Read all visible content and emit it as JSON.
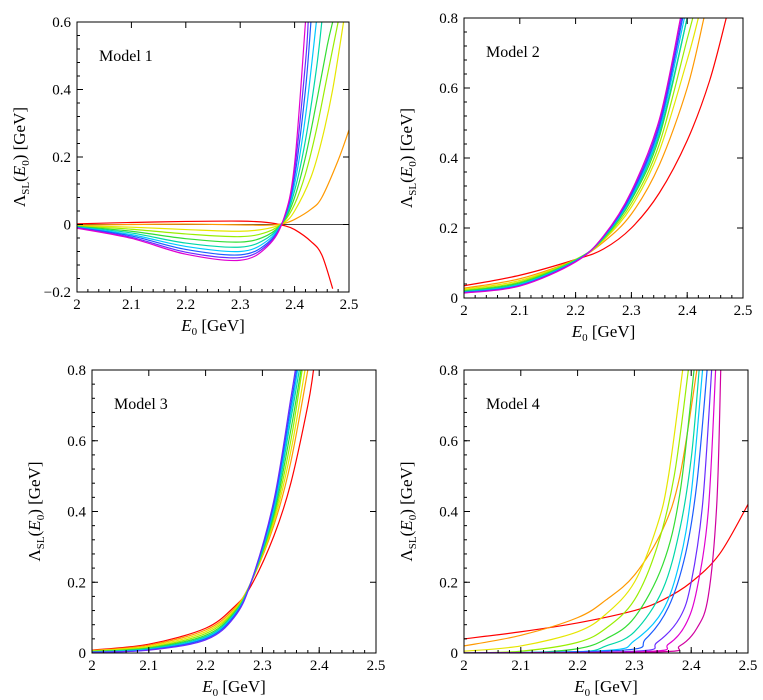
{
  "chart_data": [
    {
      "type": "line",
      "title": "Model 1",
      "xlabel": "E_0 [GeV]",
      "ylabel": "Λ_SL(E_0) [GeV]",
      "xlim": [
        2,
        2.5
      ],
      "ylim": [
        -0.2,
        0.6
      ],
      "xticks": [
        2,
        2.1,
        2.2,
        2.3,
        2.4,
        2.5
      ],
      "xtick_labels": [
        "2",
        "2.1",
        "2.2",
        "2.3",
        "2.4",
        "2.5"
      ],
      "yticks": [
        -0.2,
        0,
        0.2,
        0.4,
        0.6
      ],
      "ytick_labels": [
        "−0.2",
        "0",
        "0.2",
        "0.4",
        "0.6"
      ],
      "zero_line": true,
      "series": [
        {
          "name": "c1",
          "color": "#ff0000",
          "x": [
            2.0,
            2.1,
            2.2,
            2.3,
            2.35,
            2.38,
            2.4,
            2.43,
            2.45,
            2.47
          ],
          "y": [
            0.002,
            0.006,
            0.009,
            0.01,
            0.006,
            -0.003,
            -0.015,
            -0.05,
            -0.09,
            -0.19
          ]
        },
        {
          "name": "c2",
          "color": "#ff9900",
          "x": [
            2.0,
            2.1,
            2.2,
            2.3,
            2.35,
            2.38,
            2.4,
            2.43,
            2.45,
            2.48,
            2.5
          ],
          "y": [
            -0.002,
            0.0,
            0.001,
            -0.001,
            -0.002,
            0.003,
            0.015,
            0.045,
            0.08,
            0.19,
            0.28
          ]
        },
        {
          "name": "c3",
          "color": "#e6e600",
          "x": [
            2.0,
            2.1,
            2.2,
            2.3,
            2.35,
            2.38,
            2.4,
            2.43,
            2.45,
            2.47,
            2.49
          ],
          "y": [
            -0.004,
            -0.008,
            -0.015,
            -0.02,
            -0.012,
            0.005,
            0.04,
            0.14,
            0.25,
            0.4,
            0.6
          ]
        },
        {
          "name": "c4",
          "color": "#99ee00",
          "x": [
            2.0,
            2.1,
            2.2,
            2.3,
            2.35,
            2.38,
            2.4,
            2.42,
            2.44,
            2.46,
            2.48
          ],
          "y": [
            -0.005,
            -0.014,
            -0.028,
            -0.036,
            -0.022,
            0.008,
            0.06,
            0.15,
            0.28,
            0.44,
            0.6
          ]
        },
        {
          "name": "c5",
          "color": "#33dd33",
          "x": [
            2.0,
            2.1,
            2.2,
            2.3,
            2.35,
            2.38,
            2.4,
            2.42,
            2.44,
            2.46,
            2.47
          ],
          "y": [
            -0.006,
            -0.02,
            -0.042,
            -0.052,
            -0.032,
            0.01,
            0.08,
            0.2,
            0.36,
            0.53,
            0.6
          ]
        },
        {
          "name": "c6",
          "color": "#00d7a8",
          "x": [
            2.0,
            2.1,
            2.2,
            2.3,
            2.35,
            2.38,
            2.4,
            2.42,
            2.44,
            2.45
          ],
          "y": [
            -0.007,
            -0.025,
            -0.055,
            -0.067,
            -0.04,
            0.012,
            0.1,
            0.25,
            0.46,
            0.6
          ]
        },
        {
          "name": "c7",
          "color": "#00c8ff",
          "x": [
            2.0,
            2.1,
            2.2,
            2.3,
            2.35,
            2.38,
            2.4,
            2.42,
            2.44
          ],
          "y": [
            -0.008,
            -0.03,
            -0.065,
            -0.08,
            -0.048,
            0.014,
            0.12,
            0.32,
            0.6
          ]
        },
        {
          "name": "c8",
          "color": "#1a5cff",
          "x": [
            2.0,
            2.1,
            2.2,
            2.3,
            2.35,
            2.38,
            2.4,
            2.42,
            2.43
          ],
          "y": [
            -0.009,
            -0.034,
            -0.074,
            -0.09,
            -0.055,
            0.015,
            0.14,
            0.4,
            0.6
          ]
        },
        {
          "name": "c9",
          "color": "#6a2bff",
          "x": [
            2.0,
            2.1,
            2.2,
            2.3,
            2.35,
            2.38,
            2.4,
            2.42,
            2.425
          ],
          "y": [
            -0.01,
            -0.038,
            -0.082,
            -0.098,
            -0.06,
            0.016,
            0.16,
            0.48,
            0.6
          ]
        },
        {
          "name": "c10",
          "color": "#e000d0",
          "x": [
            2.0,
            2.1,
            2.2,
            2.3,
            2.35,
            2.38,
            2.4,
            2.42
          ],
          "y": [
            -0.011,
            -0.041,
            -0.088,
            -0.106,
            -0.065,
            0.017,
            0.18,
            0.6
          ]
        }
      ]
    },
    {
      "type": "line",
      "title": "Model 2",
      "xlabel": "E_0 [GeV]",
      "ylabel": "Λ_SL(E_0) [GeV]",
      "xlim": [
        2,
        2.5
      ],
      "ylim": [
        0,
        0.8
      ],
      "xticks": [
        2,
        2.1,
        2.2,
        2.3,
        2.4,
        2.5
      ],
      "xtick_labels": [
        "2",
        "2.1",
        "2.2",
        "2.3",
        "2.4",
        "2.5"
      ],
      "yticks": [
        0,
        0.2,
        0.4,
        0.6,
        0.8
      ],
      "ytick_labels": [
        "0",
        "0.2",
        "0.4",
        "0.6",
        "0.8"
      ],
      "zero_line": false,
      "series": [
        {
          "name": "c1",
          "color": "#ff0000",
          "x": [
            2.0,
            2.1,
            2.2,
            2.25,
            2.3,
            2.35,
            2.4,
            2.44,
            2.47
          ],
          "y": [
            0.035,
            0.065,
            0.11,
            0.14,
            0.2,
            0.3,
            0.45,
            0.62,
            0.8
          ]
        },
        {
          "name": "c2",
          "color": "#ff9900",
          "x": [
            2.0,
            2.1,
            2.2,
            2.25,
            2.3,
            2.35,
            2.4,
            2.43
          ],
          "y": [
            0.028,
            0.055,
            0.11,
            0.16,
            0.24,
            0.38,
            0.6,
            0.8
          ]
        },
        {
          "name": "c3",
          "color": "#e6e600",
          "x": [
            2.0,
            2.1,
            2.2,
            2.25,
            2.3,
            2.35,
            2.4,
            2.42
          ],
          "y": [
            0.025,
            0.05,
            0.11,
            0.165,
            0.26,
            0.42,
            0.68,
            0.8
          ]
        },
        {
          "name": "c4",
          "color": "#99ee00",
          "x": [
            2.0,
            2.1,
            2.2,
            2.25,
            2.3,
            2.35,
            2.4,
            2.41
          ],
          "y": [
            0.022,
            0.046,
            0.11,
            0.168,
            0.27,
            0.44,
            0.74,
            0.8
          ]
        },
        {
          "name": "c5",
          "color": "#33dd33",
          "x": [
            2.0,
            2.1,
            2.2,
            2.25,
            2.3,
            2.35,
            2.4
          ],
          "y": [
            0.02,
            0.043,
            0.108,
            0.17,
            0.28,
            0.46,
            0.8
          ]
        },
        {
          "name": "c6",
          "color": "#00d7a8",
          "x": [
            2.0,
            2.1,
            2.2,
            2.25,
            2.3,
            2.35,
            2.4
          ],
          "y": [
            0.018,
            0.04,
            0.107,
            0.172,
            0.285,
            0.47,
            0.8
          ]
        },
        {
          "name": "c7",
          "color": "#00c8ff",
          "x": [
            2.0,
            2.1,
            2.2,
            2.25,
            2.3,
            2.35,
            2.395
          ],
          "y": [
            0.017,
            0.038,
            0.106,
            0.174,
            0.29,
            0.48,
            0.8
          ]
        },
        {
          "name": "c8",
          "color": "#1a5cff",
          "x": [
            2.0,
            2.1,
            2.2,
            2.25,
            2.3,
            2.35,
            2.392
          ],
          "y": [
            0.016,
            0.036,
            0.105,
            0.175,
            0.295,
            0.49,
            0.8
          ]
        },
        {
          "name": "c9",
          "color": "#6a2bff",
          "x": [
            2.0,
            2.1,
            2.2,
            2.25,
            2.3,
            2.35,
            2.39
          ],
          "y": [
            0.015,
            0.035,
            0.104,
            0.176,
            0.3,
            0.5,
            0.8
          ]
        },
        {
          "name": "c10",
          "color": "#e000d0",
          "x": [
            2.0,
            2.1,
            2.2,
            2.25,
            2.3,
            2.35,
            2.388
          ],
          "y": [
            0.014,
            0.034,
            0.103,
            0.177,
            0.305,
            0.51,
            0.8
          ]
        }
      ]
    },
    {
      "type": "line",
      "title": "Model 3",
      "xlabel": "E_0 [GeV]",
      "ylabel": "Λ_SL(E_0) [GeV]",
      "xlim": [
        2,
        2.5
      ],
      "ylim": [
        0,
        0.8
      ],
      "xticks": [
        2,
        2.1,
        2.2,
        2.3,
        2.4,
        2.5
      ],
      "xtick_labels": [
        "2",
        "2.1",
        "2.2",
        "2.3",
        "2.4",
        "2.5"
      ],
      "yticks": [
        0,
        0.2,
        0.4,
        0.6,
        0.8
      ],
      "ytick_labels": [
        "0",
        "0.2",
        "0.4",
        "0.6",
        "0.8"
      ],
      "zero_line": false,
      "series": [
        {
          "name": "c1",
          "color": "#ff0000",
          "x": [
            2.0,
            2.1,
            2.2,
            2.25,
            2.28,
            2.32,
            2.35,
            2.38,
            2.39
          ],
          "y": [
            0.008,
            0.025,
            0.07,
            0.13,
            0.19,
            0.33,
            0.48,
            0.7,
            0.8
          ]
        },
        {
          "name": "c2",
          "color": "#ff9900",
          "x": [
            2.0,
            2.1,
            2.2,
            2.25,
            2.28,
            2.32,
            2.35,
            2.38
          ],
          "y": [
            0.007,
            0.022,
            0.065,
            0.125,
            0.2,
            0.36,
            0.54,
            0.8
          ]
        },
        {
          "name": "c3",
          "color": "#e6e600",
          "x": [
            2.0,
            2.1,
            2.2,
            2.25,
            2.28,
            2.32,
            2.35,
            2.375
          ],
          "y": [
            0.006,
            0.019,
            0.06,
            0.12,
            0.2,
            0.37,
            0.57,
            0.8
          ]
        },
        {
          "name": "c4",
          "color": "#99ee00",
          "x": [
            2.0,
            2.1,
            2.2,
            2.25,
            2.28,
            2.32,
            2.35,
            2.37
          ],
          "y": [
            0.005,
            0.016,
            0.055,
            0.117,
            0.2,
            0.38,
            0.6,
            0.8
          ]
        },
        {
          "name": "c5",
          "color": "#33dd33",
          "x": [
            2.0,
            2.1,
            2.2,
            2.25,
            2.28,
            2.32,
            2.35,
            2.368
          ],
          "y": [
            0.004,
            0.014,
            0.05,
            0.113,
            0.2,
            0.39,
            0.63,
            0.8
          ]
        },
        {
          "name": "c6",
          "color": "#00d7a8",
          "x": [
            2.0,
            2.1,
            2.2,
            2.25,
            2.28,
            2.32,
            2.35,
            2.365
          ],
          "y": [
            0.003,
            0.012,
            0.046,
            0.11,
            0.2,
            0.4,
            0.66,
            0.8
          ]
        },
        {
          "name": "c7",
          "color": "#00c8ff",
          "x": [
            2.0,
            2.1,
            2.2,
            2.25,
            2.28,
            2.32,
            2.35,
            2.362
          ],
          "y": [
            0.003,
            0.01,
            0.043,
            0.107,
            0.2,
            0.41,
            0.68,
            0.8
          ]
        },
        {
          "name": "c8",
          "color": "#1a5cff",
          "x": [
            2.0,
            2.1,
            2.2,
            2.25,
            2.28,
            2.32,
            2.35,
            2.36
          ],
          "y": [
            0.002,
            0.009,
            0.04,
            0.104,
            0.2,
            0.42,
            0.7,
            0.8
          ]
        },
        {
          "name": "c9",
          "color": "#6a2bff",
          "x": [
            2.0,
            2.1,
            2.2,
            2.25,
            2.28,
            2.32,
            2.35,
            2.358
          ],
          "y": [
            0.002,
            0.008,
            0.037,
            0.1,
            0.2,
            0.43,
            0.72,
            0.8
          ]
        }
      ]
    },
    {
      "type": "line",
      "title": "Model 4",
      "xlabel": "E_0 [GeV]",
      "ylabel": "Λ_SL(E_0) [GeV]",
      "xlim": [
        2,
        2.5
      ],
      "ylim": [
        0,
        0.8
      ],
      "xticks": [
        2,
        2.1,
        2.2,
        2.3,
        2.4,
        2.5
      ],
      "xtick_labels": [
        "2",
        "2.1",
        "2.2",
        "2.3",
        "2.4",
        "2.5"
      ],
      "yticks": [
        0,
        0.2,
        0.4,
        0.6,
        0.8
      ],
      "ytick_labels": [
        "0",
        "0.2",
        "0.4",
        "0.6",
        "0.8"
      ],
      "zero_line": false,
      "series": [
        {
          "name": "c1",
          "color": "#ff0000",
          "x": [
            2.0,
            2.1,
            2.2,
            2.3,
            2.35,
            2.4,
            2.45,
            2.5
          ],
          "y": [
            0.04,
            0.06,
            0.085,
            0.12,
            0.15,
            0.2,
            0.28,
            0.42
          ]
        },
        {
          "name": "c2",
          "color": "#ff9900",
          "x": [
            2.0,
            2.1,
            2.2,
            2.25,
            2.3,
            2.35,
            2.38,
            2.41
          ],
          "y": [
            0.02,
            0.05,
            0.1,
            0.15,
            0.22,
            0.35,
            0.5,
            0.8
          ]
        },
        {
          "name": "c3",
          "color": "#e6e600",
          "x": [
            2.0,
            2.1,
            2.2,
            2.25,
            2.3,
            2.34,
            2.36,
            2.385
          ],
          "y": [
            0.005,
            0.02,
            0.06,
            0.11,
            0.2,
            0.36,
            0.5,
            0.8
          ]
        },
        {
          "name": "c4",
          "color": "#99ee00",
          "x": [
            2.0,
            2.1,
            2.2,
            2.25,
            2.3,
            2.34,
            2.37,
            2.395
          ],
          "y": [
            0.0,
            0.005,
            0.03,
            0.07,
            0.15,
            0.3,
            0.5,
            0.8
          ]
        },
        {
          "name": "c5",
          "color": "#33dd33",
          "x": [
            2.0,
            2.1,
            2.2,
            2.25,
            2.3,
            2.35,
            2.38,
            2.405
          ],
          "y": [
            0.0,
            0.0,
            0.012,
            0.04,
            0.1,
            0.25,
            0.45,
            0.8
          ]
        },
        {
          "name": "c6",
          "color": "#00d7a8",
          "x": [
            2.0,
            2.2,
            2.25,
            2.3,
            2.35,
            2.38,
            2.4,
            2.414
          ],
          "y": [
            0.0,
            0.003,
            0.02,
            0.06,
            0.18,
            0.35,
            0.55,
            0.8
          ]
        },
        {
          "name": "c7",
          "color": "#00c8ff",
          "x": [
            2.0,
            2.25,
            2.3,
            2.35,
            2.38,
            2.4,
            2.42
          ],
          "y": [
            0.0,
            0.007,
            0.035,
            0.12,
            0.26,
            0.45,
            0.8
          ]
        },
        {
          "name": "c8",
          "color": "#1a5cff",
          "x": [
            2.0,
            2.28,
            2.32,
            2.36,
            2.39,
            2.41,
            2.428
          ],
          "y": [
            0.0,
            0.008,
            0.04,
            0.13,
            0.28,
            0.48,
            0.8
          ]
        },
        {
          "name": "c9",
          "color": "#6a2bff",
          "x": [
            2.0,
            2.3,
            2.34,
            2.38,
            2.4,
            2.42,
            2.436
          ],
          "y": [
            0.0,
            0.005,
            0.03,
            0.1,
            0.2,
            0.42,
            0.8
          ]
        },
        {
          "name": "c10",
          "color": "#e000d0",
          "x": [
            2.0,
            2.32,
            2.36,
            2.39,
            2.41,
            2.43,
            2.443
          ],
          "y": [
            0.0,
            0.004,
            0.025,
            0.08,
            0.18,
            0.4,
            0.8
          ]
        },
        {
          "name": "c11",
          "color": "#d000a0",
          "x": [
            2.0,
            2.34,
            2.38,
            2.41,
            2.43,
            2.445,
            2.452
          ],
          "y": [
            0.0,
            0.003,
            0.02,
            0.07,
            0.16,
            0.42,
            0.8
          ]
        }
      ]
    }
  ]
}
